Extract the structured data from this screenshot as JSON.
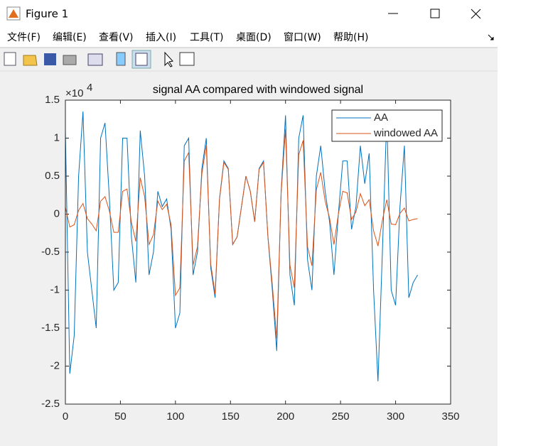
{
  "window": {
    "title": "Figure 1",
    "menu": [
      "文件(F)",
      "编辑(E)",
      "查看(V)",
      "插入(I)",
      "工具(T)",
      "桌面(D)",
      "窗口(W)",
      "帮助(H)"
    ]
  },
  "chart_data": {
    "type": "line",
    "title": "signal AA compared with windowed signal",
    "y_scale_base": "×10",
    "y_scale_exponent": "4",
    "x": [
      0,
      4,
      8,
      12,
      16,
      20,
      24,
      28,
      32,
      36,
      40,
      44,
      48,
      52,
      56,
      60,
      64,
      68,
      72,
      76,
      80,
      84,
      88,
      92,
      96,
      100,
      104,
      108,
      112,
      116,
      120,
      124,
      128,
      132,
      136,
      140,
      144,
      148,
      152,
      156,
      160,
      164,
      168,
      172,
      176,
      180,
      184,
      188,
      192,
      196,
      200,
      204,
      208,
      212,
      216,
      220,
      224,
      228,
      232,
      236,
      240,
      244,
      248,
      252,
      256,
      260,
      264,
      268,
      272,
      276,
      280,
      284,
      288,
      292,
      296,
      300,
      304,
      308,
      312,
      316,
      320
    ],
    "series": [
      {
        "name": "AA",
        "color": "#0072BD",
        "values": [
          1.1,
          -2.1,
          -1.6,
          0.5,
          1.35,
          -0.5,
          -1.0,
          -1.5,
          1.0,
          1.2,
          0.2,
          -1.0,
          -0.9,
          1.0,
          1.0,
          -0.3,
          -0.9,
          1.1,
          0.5,
          -0.8,
          -0.5,
          0.3,
          0.1,
          0.2,
          -0.2,
          -1.5,
          -1.3,
          0.9,
          1.0,
          -0.8,
          -0.5,
          0.6,
          1.0,
          -0.7,
          -1.1,
          0.2,
          0.7,
          0.6,
          -0.4,
          -0.3,
          0.1,
          0.5,
          0.3,
          -0.1,
          0.6,
          0.7,
          -0.3,
          -1.0,
          -1.8,
          0.3,
          1.3,
          -0.8,
          -1.2,
          1.0,
          1.3,
          -0.6,
          -1.0,
          0.5,
          0.9,
          0.3,
          -0.1,
          -0.8,
          0.0,
          0.7,
          0.7,
          -0.2,
          0.1,
          0.9,
          0.4,
          0.8,
          -1.0,
          -2.2,
          -0.5,
          1.3,
          -1.0,
          -1.2,
          0.1,
          0.9,
          -1.1,
          -0.9,
          -0.8
        ]
      },
      {
        "name": "windowed AA",
        "color": "#D95319",
        "values": [
          0.09,
          -0.17,
          -0.14,
          0.05,
          0.14,
          -0.06,
          -0.13,
          -0.22,
          0.17,
          0.23,
          0.04,
          -0.24,
          -0.24,
          0.3,
          0.33,
          -0.11,
          -0.36,
          0.48,
          0.23,
          -0.4,
          -0.27,
          0.17,
          0.06,
          0.13,
          -0.14,
          -1.07,
          -0.97,
          0.7,
          0.81,
          -0.67,
          -0.43,
          0.53,
          0.91,
          -0.65,
          -1.05,
          0.19,
          0.68,
          0.59,
          -0.4,
          -0.3,
          0.1,
          0.5,
          0.3,
          -0.1,
          0.59,
          0.68,
          -0.29,
          -0.93,
          -1.64,
          0.27,
          1.12,
          -0.67,
          -0.97,
          0.78,
          0.97,
          -0.43,
          -0.68,
          0.32,
          0.55,
          0.17,
          -0.05,
          -0.4,
          0,
          0.3,
          0.28,
          -0.07,
          0.03,
          0.27,
          0.11,
          0.19,
          -0.22,
          -0.42,
          -0.08,
          0.19,
          -0.13,
          -0.14,
          0.01,
          0.08,
          -0.09,
          -0.07,
          -0.06
        ]
      }
    ],
    "xlim": [
      0,
      350
    ],
    "xticks": [
      0,
      50,
      100,
      150,
      200,
      250,
      300,
      350
    ],
    "ylim": [
      -2.5,
      1.5
    ],
    "yticks": [
      -2.5,
      -2,
      -1.5,
      -1,
      -0.5,
      0,
      0.5,
      1,
      1.5
    ],
    "grid": false,
    "legend": "northeast"
  }
}
